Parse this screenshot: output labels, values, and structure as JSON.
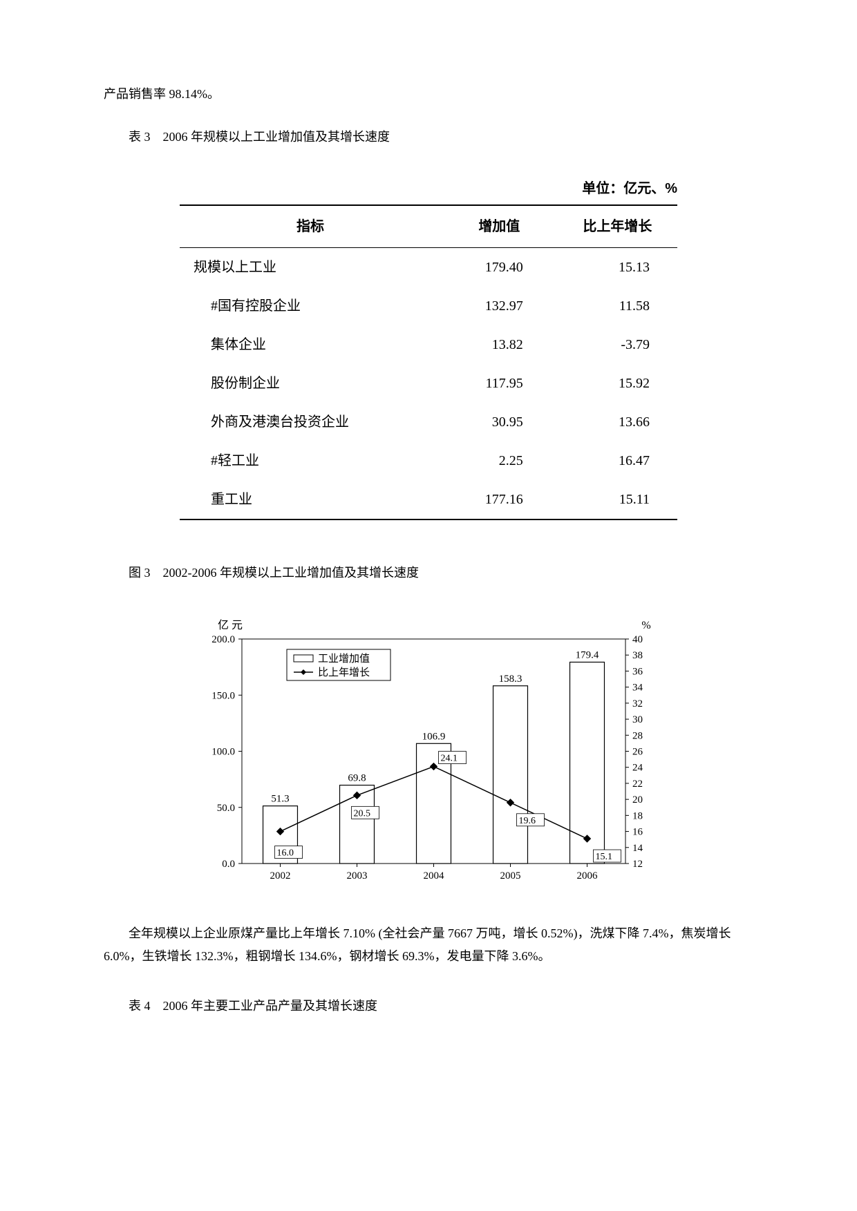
{
  "intro_text": "产品销售率 98.14%。",
  "table3_title": "表 3　2006 年规模以上工业增加值及其增长速度",
  "table3": {
    "unit_label": "单位：亿元、%",
    "columns": [
      "指标",
      "增加值",
      "比上年增长"
    ],
    "rows": [
      {
        "label": "规模以上工业",
        "value": "179.40",
        "growth": "15.13",
        "indent": 0
      },
      {
        "label": "#国有控股企业",
        "value": "132.97",
        "growth": "11.58",
        "indent": 1
      },
      {
        "label": "集体企业",
        "value": "13.82",
        "growth": "-3.79",
        "indent": 1
      },
      {
        "label": "股份制企业",
        "value": "117.95",
        "growth": "15.92",
        "indent": 1
      },
      {
        "label": "外商及港澳台投资企业",
        "value": "30.95",
        "growth": "13.66",
        "indent": 1
      },
      {
        "label": "#轻工业",
        "value": "2.25",
        "growth": "16.47",
        "indent": 1
      },
      {
        "label": "重工业",
        "value": "177.16",
        "growth": "15.11",
        "indent": 1
      }
    ]
  },
  "fig3_title": "图 3　2002-2006 年规模以上工业增加值及其增长速度",
  "chart": {
    "y_left_label": "亿 元",
    "y_right_label": "%",
    "y_left_ticks": [
      0.0,
      50.0,
      100.0,
      150.0,
      200.0
    ],
    "y_left_min": 0.0,
    "y_left_max": 200.0,
    "y_right_ticks": [
      12,
      14,
      16,
      18,
      20,
      22,
      24,
      26,
      28,
      30,
      32,
      34,
      36,
      38,
      40
    ],
    "y_right_min": 12,
    "y_right_max": 40,
    "x_labels": [
      "2002",
      "2003",
      "2004",
      "2005",
      "2006"
    ],
    "legend_bar": "工业增加值",
    "legend_line": "比上年增长",
    "bars": [
      {
        "x": "2002",
        "value": 51.3,
        "label": "51.3"
      },
      {
        "x": "2003",
        "value": 69.8,
        "label": "69.8"
      },
      {
        "x": "2004",
        "value": 106.9,
        "label": "106.9"
      },
      {
        "x": "2005",
        "value": 158.3,
        "label": "158.3"
      },
      {
        "x": "2006",
        "value": 179.4,
        "label": "179.4"
      }
    ],
    "line": [
      {
        "x": "2002",
        "value": 16.0,
        "label": "16.0"
      },
      {
        "x": "2003",
        "value": 20.5,
        "label": "20.5"
      },
      {
        "x": "2004",
        "value": 24.1,
        "label": "24.1"
      },
      {
        "x": "2005",
        "value": 19.6,
        "label": "19.6"
      },
      {
        "x": "2006",
        "value": 15.1,
        "label": "15.1"
      }
    ],
    "bar_fill": "#ffffff",
    "bar_stroke": "#000000",
    "line_stroke": "#000000",
    "marker_fill": "#000000",
    "plot_bg": "#ffffff",
    "axis_color": "#000000",
    "grid_color": "#c0c0c0",
    "font_size": 15,
    "bar_width_ratio": 0.45
  },
  "body_text": "全年规模以上企业原煤产量比上年增长 7.10% (全社会产量 7667 万吨，增长 0.52%)，洗煤下降 7.4%，焦炭增长 6.0%，生铁增长 132.3%，粗钢增长 134.6%，钢材增长 69.3%，发电量下降 3.6%。",
  "table4_title": "表 4　2006 年主要工业产品产量及其增长速度"
}
